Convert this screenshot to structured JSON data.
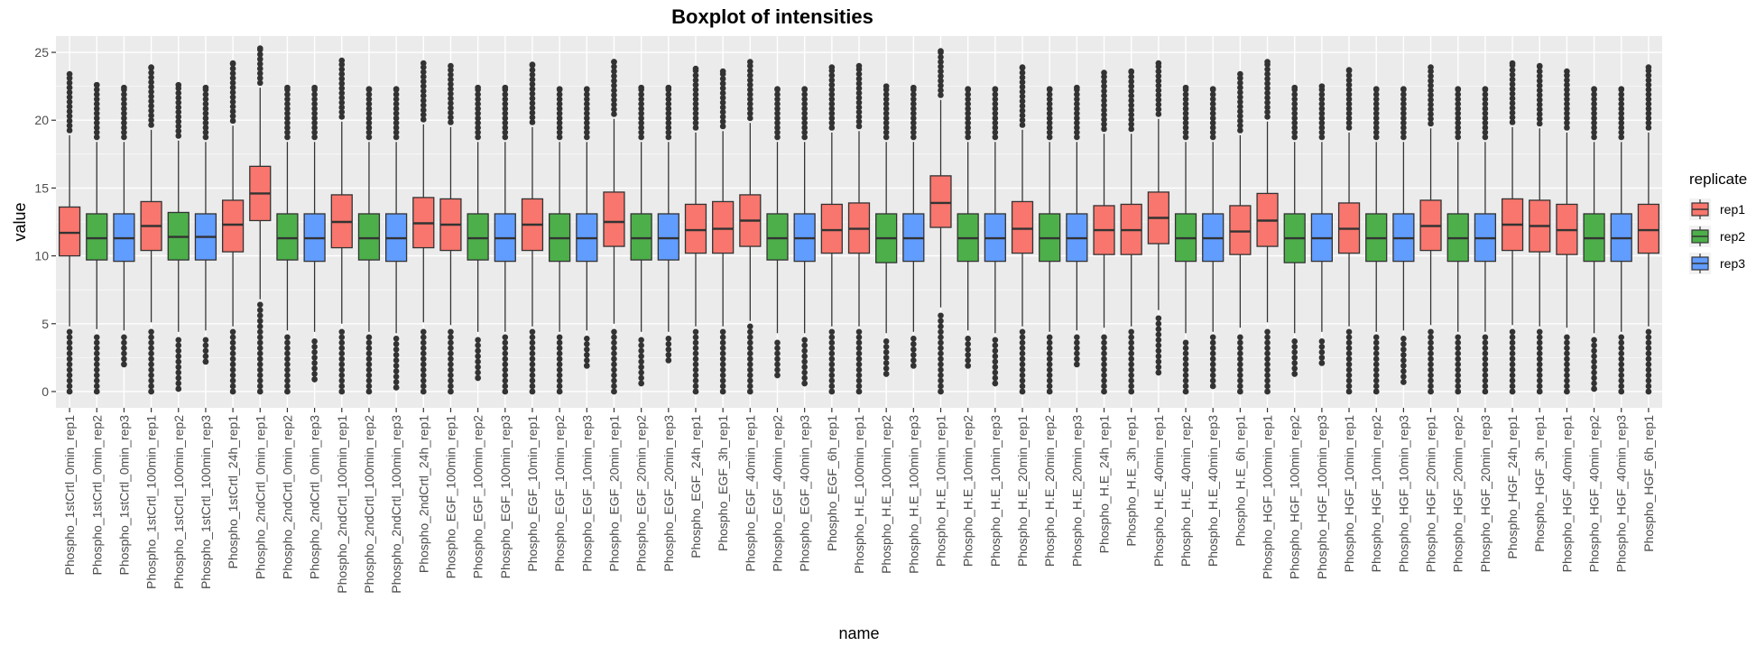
{
  "chart_data": {
    "type": "boxplot",
    "title": "Boxplot of intensities",
    "xlabel": "name",
    "ylabel": "value",
    "ylim": [
      -1.2,
      26.2
    ],
    "yticks": [
      0,
      5,
      10,
      15,
      20,
      25
    ],
    "grid": true,
    "legend": {
      "title": "replicate",
      "position": "right",
      "entries": [
        {
          "name": "rep1",
          "color": "#F8766D"
        },
        {
          "name": "rep2",
          "color": "#4DAF4A"
        },
        {
          "name": "rep3",
          "color": "#619CFF"
        }
      ]
    },
    "colors": {
      "rep1": "#F8766D",
      "rep2": "#4DAF4A",
      "rep3": "#619CFF",
      "panel": "#EBEBEB",
      "grid": "#FFFFFF",
      "outlier": "#333333"
    },
    "categories": [
      "Phospho_1stCrtl_0min_rep1",
      "Phospho_1stCrtl_0min_rep2",
      "Phospho_1stCrtl_0min_rep3",
      "Phospho_1stCrtl_100min_rep1",
      "Phospho_1stCrtl_100min_rep2",
      "Phospho_1stCrtl_100min_rep3",
      "Phospho_1stCrtl_24h_rep1",
      "Phospho_2ndCrtl_0min_rep1",
      "Phospho_2ndCrtl_0min_rep2",
      "Phospho_2ndCrtl_0min_rep3",
      "Phospho_2ndCrtl_100min_rep1",
      "Phospho_2ndCrtl_100min_rep2",
      "Phospho_2ndCrtl_100min_rep3",
      "Phospho_2ndCrtl_24h_rep1",
      "Phospho_EGF_100min_rep1",
      "Phospho_EGF_100min_rep2",
      "Phospho_EGF_100min_rep3",
      "Phospho_EGF_10min_rep1",
      "Phospho_EGF_10min_rep2",
      "Phospho_EGF_10min_rep3",
      "Phospho_EGF_20min_rep1",
      "Phospho_EGF_20min_rep2",
      "Phospho_EGF_20min_rep3",
      "Phospho_EGF_24h_rep1",
      "Phospho_EGF_3h_rep1",
      "Phospho_EGF_40min_rep1",
      "Phospho_EGF_40min_rep2",
      "Phospho_EGF_40min_rep3",
      "Phospho_EGF_6h_rep1",
      "Phospho_H.E_100min_rep1",
      "Phospho_H.E_100min_rep2",
      "Phospho_H.E_100min_rep3",
      "Phospho_H.E_10min_rep1",
      "Phospho_H.E_10min_rep2",
      "Phospho_H.E_10min_rep3",
      "Phospho_H.E_20min_rep1",
      "Phospho_H.E_20min_rep2",
      "Phospho_H.E_20min_rep3",
      "Phospho_H.E_24h_rep1",
      "Phospho_H.E_3h_rep1",
      "Phospho_H.E_40min_rep1",
      "Phospho_H.E_40min_rep2",
      "Phospho_H.E_40min_rep3",
      "Phospho_H.E_6h_rep1",
      "Phospho_HGF_100min_rep1",
      "Phospho_HGF_100min_rep2",
      "Phospho_HGF_100min_rep3",
      "Phospho_HGF_10min_rep1",
      "Phospho_HGF_10min_rep2",
      "Phospho_HGF_10min_rep3",
      "Phospho_HGF_20min_rep1",
      "Phospho_HGF_20min_rep2",
      "Phospho_HGF_20min_rep3",
      "Phospho_HGF_24h_rep1",
      "Phospho_HGF_3h_rep1",
      "Phospho_HGF_40min_rep1",
      "Phospho_HGF_40min_rep2",
      "Phospho_HGF_40min_rep3",
      "Phospho_HGF_6h_rep1"
    ],
    "boxes": [
      {
        "rep": "rep1",
        "q1": 10.0,
        "median": 11.7,
        "q3": 13.6,
        "lo_whisker": 4.8,
        "hi_whisker": 18.9,
        "out_min": 0.0,
        "out_max": 23.4
      },
      {
        "rep": "rep2",
        "q1": 9.7,
        "median": 11.3,
        "q3": 13.1,
        "lo_whisker": 4.6,
        "hi_whisker": 18.4,
        "out_min": 0.0,
        "out_max": 22.6
      },
      {
        "rep": "rep3",
        "q1": 9.6,
        "median": 11.3,
        "q3": 13.1,
        "lo_whisker": 4.5,
        "hi_whisker": 18.4,
        "out_min": 2.0,
        "out_max": 22.4
      },
      {
        "rep": "rep1",
        "q1": 10.4,
        "median": 12.2,
        "q3": 14.0,
        "lo_whisker": 5.1,
        "hi_whisker": 19.3,
        "out_min": 0.0,
        "out_max": 23.9
      },
      {
        "rep": "rep2",
        "q1": 9.7,
        "median": 11.4,
        "q3": 13.2,
        "lo_whisker": 4.4,
        "hi_whisker": 18.5,
        "out_min": 0.2,
        "out_max": 22.6
      },
      {
        "rep": "rep3",
        "q1": 9.7,
        "median": 11.4,
        "q3": 13.1,
        "lo_whisker": 4.5,
        "hi_whisker": 18.4,
        "out_min": 2.2,
        "out_max": 22.4
      },
      {
        "rep": "rep1",
        "q1": 10.3,
        "median": 12.3,
        "q3": 14.1,
        "lo_whisker": 4.8,
        "hi_whisker": 19.6,
        "out_min": 0.0,
        "out_max": 24.2
      },
      {
        "rep": "rep1",
        "q1": 12.6,
        "median": 14.6,
        "q3": 16.6,
        "lo_whisker": 6.8,
        "hi_whisker": 22.4,
        "out_min": 0.0,
        "out_max": 25.3
      },
      {
        "rep": "rep2",
        "q1": 9.7,
        "median": 11.3,
        "q3": 13.1,
        "lo_whisker": 4.5,
        "hi_whisker": 18.4,
        "out_min": 0.0,
        "out_max": 22.4
      },
      {
        "rep": "rep3",
        "q1": 9.6,
        "median": 11.3,
        "q3": 13.1,
        "lo_whisker": 4.4,
        "hi_whisker": 18.4,
        "out_min": 0.9,
        "out_max": 22.4
      },
      {
        "rep": "rep1",
        "q1": 10.6,
        "median": 12.5,
        "q3": 14.5,
        "lo_whisker": 5.0,
        "hi_whisker": 19.9,
        "out_min": 0.0,
        "out_max": 24.4
      },
      {
        "rep": "rep2",
        "q1": 9.7,
        "median": 11.3,
        "q3": 13.1,
        "lo_whisker": 4.4,
        "hi_whisker": 18.4,
        "out_min": 0.0,
        "out_max": 22.3
      },
      {
        "rep": "rep3",
        "q1": 9.6,
        "median": 11.3,
        "q3": 13.1,
        "lo_whisker": 4.3,
        "hi_whisker": 18.4,
        "out_min": 0.3,
        "out_max": 22.3
      },
      {
        "rep": "rep1",
        "q1": 10.6,
        "median": 12.4,
        "q3": 14.3,
        "lo_whisker": 5.1,
        "hi_whisker": 19.7,
        "out_min": 0.0,
        "out_max": 24.2
      },
      {
        "rep": "rep1",
        "q1": 10.4,
        "median": 12.3,
        "q3": 14.2,
        "lo_whisker": 4.9,
        "hi_whisker": 19.5,
        "out_min": 0.0,
        "out_max": 24.0
      },
      {
        "rep": "rep2",
        "q1": 9.7,
        "median": 11.3,
        "q3": 13.1,
        "lo_whisker": 4.4,
        "hi_whisker": 18.4,
        "out_min": 1.0,
        "out_max": 22.4
      },
      {
        "rep": "rep3",
        "q1": 9.6,
        "median": 11.3,
        "q3": 13.1,
        "lo_whisker": 4.4,
        "hi_whisker": 18.4,
        "out_min": 0.0,
        "out_max": 22.4
      },
      {
        "rep": "rep1",
        "q1": 10.4,
        "median": 12.3,
        "q3": 14.2,
        "lo_whisker": 4.8,
        "hi_whisker": 19.5,
        "out_min": 0.0,
        "out_max": 24.1
      },
      {
        "rep": "rep2",
        "q1": 9.6,
        "median": 11.3,
        "q3": 13.1,
        "lo_whisker": 4.4,
        "hi_whisker": 18.4,
        "out_min": 0.0,
        "out_max": 22.3
      },
      {
        "rep": "rep3",
        "q1": 9.6,
        "median": 11.3,
        "q3": 13.1,
        "lo_whisker": 4.5,
        "hi_whisker": 18.4,
        "out_min": 1.9,
        "out_max": 22.3
      },
      {
        "rep": "rep1",
        "q1": 10.7,
        "median": 12.5,
        "q3": 14.7,
        "lo_whisker": 5.0,
        "hi_whisker": 20.1,
        "out_min": 0.0,
        "out_max": 24.3
      },
      {
        "rep": "rep2",
        "q1": 9.7,
        "median": 11.3,
        "q3": 13.1,
        "lo_whisker": 4.4,
        "hi_whisker": 18.4,
        "out_min": 0.6,
        "out_max": 22.4
      },
      {
        "rep": "rep3",
        "q1": 9.7,
        "median": 11.3,
        "q3": 13.1,
        "lo_whisker": 4.4,
        "hi_whisker": 18.4,
        "out_min": 2.3,
        "out_max": 22.4
      },
      {
        "rep": "rep1",
        "q1": 10.2,
        "median": 11.9,
        "q3": 13.8,
        "lo_whisker": 4.8,
        "hi_whisker": 19.1,
        "out_min": 0.0,
        "out_max": 23.8
      },
      {
        "rep": "rep1",
        "q1": 10.2,
        "median": 12.0,
        "q3": 14.0,
        "lo_whisker": 4.8,
        "hi_whisker": 19.2,
        "out_min": 0.0,
        "out_max": 23.6
      },
      {
        "rep": "rep1",
        "q1": 10.7,
        "median": 12.6,
        "q3": 14.5,
        "lo_whisker": 5.2,
        "hi_whisker": 19.8,
        "out_min": 0.0,
        "out_max": 24.3
      },
      {
        "rep": "rep2",
        "q1": 9.7,
        "median": 11.3,
        "q3": 13.1,
        "lo_whisker": 4.3,
        "hi_whisker": 18.4,
        "out_min": 1.2,
        "out_max": 22.3
      },
      {
        "rep": "rep3",
        "q1": 9.6,
        "median": 11.3,
        "q3": 13.1,
        "lo_whisker": 4.3,
        "hi_whisker": 18.4,
        "out_min": 0.6,
        "out_max": 22.3
      },
      {
        "rep": "rep1",
        "q1": 10.2,
        "median": 11.9,
        "q3": 13.8,
        "lo_whisker": 4.8,
        "hi_whisker": 19.1,
        "out_min": 0.0,
        "out_max": 23.9
      },
      {
        "rep": "rep1",
        "q1": 10.2,
        "median": 12.0,
        "q3": 13.9,
        "lo_whisker": 4.8,
        "hi_whisker": 19.2,
        "out_min": 0.0,
        "out_max": 24.0
      },
      {
        "rep": "rep2",
        "q1": 9.5,
        "median": 11.3,
        "q3": 13.1,
        "lo_whisker": 4.3,
        "hi_whisker": 18.4,
        "out_min": 1.3,
        "out_max": 22.5
      },
      {
        "rep": "rep3",
        "q1": 9.6,
        "median": 11.3,
        "q3": 13.1,
        "lo_whisker": 4.4,
        "hi_whisker": 18.4,
        "out_min": 1.9,
        "out_max": 22.4
      },
      {
        "rep": "rep1",
        "q1": 12.1,
        "median": 13.9,
        "q3": 15.9,
        "lo_whisker": 6.2,
        "hi_whisker": 21.5,
        "out_min": 0.0,
        "out_max": 25.1
      },
      {
        "rep": "rep2",
        "q1": 9.6,
        "median": 11.3,
        "q3": 13.1,
        "lo_whisker": 4.5,
        "hi_whisker": 18.4,
        "out_min": 1.9,
        "out_max": 22.3
      },
      {
        "rep": "rep3",
        "q1": 9.6,
        "median": 11.3,
        "q3": 13.1,
        "lo_whisker": 4.3,
        "hi_whisker": 18.4,
        "out_min": 0.6,
        "out_max": 22.3
      },
      {
        "rep": "rep1",
        "q1": 10.2,
        "median": 12.0,
        "q3": 14.0,
        "lo_whisker": 4.8,
        "hi_whisker": 19.3,
        "out_min": 0.0,
        "out_max": 23.9
      },
      {
        "rep": "rep2",
        "q1": 9.6,
        "median": 11.3,
        "q3": 13.1,
        "lo_whisker": 4.4,
        "hi_whisker": 18.4,
        "out_min": 0.0,
        "out_max": 22.3
      },
      {
        "rep": "rep3",
        "q1": 9.6,
        "median": 11.3,
        "q3": 13.1,
        "lo_whisker": 4.5,
        "hi_whisker": 18.4,
        "out_min": 2.0,
        "out_max": 22.4
      },
      {
        "rep": "rep1",
        "q1": 10.1,
        "median": 11.9,
        "q3": 13.7,
        "lo_whisker": 4.7,
        "hi_whisker": 19.0,
        "out_min": 0.0,
        "out_max": 23.5
      },
      {
        "rep": "rep1",
        "q1": 10.1,
        "median": 11.9,
        "q3": 13.8,
        "lo_whisker": 4.8,
        "hi_whisker": 19.0,
        "out_min": 0.0,
        "out_max": 23.6
      },
      {
        "rep": "rep1",
        "q1": 10.9,
        "median": 12.8,
        "q3": 14.7,
        "lo_whisker": 6.0,
        "hi_whisker": 20.1,
        "out_min": 1.4,
        "out_max": 24.2
      },
      {
        "rep": "rep2",
        "q1": 9.6,
        "median": 11.3,
        "q3": 13.1,
        "lo_whisker": 4.3,
        "hi_whisker": 18.4,
        "out_min": 0.0,
        "out_max": 22.4
      },
      {
        "rep": "rep3",
        "q1": 9.6,
        "median": 11.3,
        "q3": 13.1,
        "lo_whisker": 4.4,
        "hi_whisker": 18.4,
        "out_min": 0.4,
        "out_max": 22.3
      },
      {
        "rep": "rep1",
        "q1": 10.1,
        "median": 11.8,
        "q3": 13.7,
        "lo_whisker": 4.7,
        "hi_whisker": 18.9,
        "out_min": 0.0,
        "out_max": 23.4
      },
      {
        "rep": "rep1",
        "q1": 10.7,
        "median": 12.6,
        "q3": 14.6,
        "lo_whisker": 5.1,
        "hi_whisker": 19.9,
        "out_min": 0.0,
        "out_max": 24.3
      },
      {
        "rep": "rep2",
        "q1": 9.5,
        "median": 11.3,
        "q3": 13.1,
        "lo_whisker": 4.3,
        "hi_whisker": 18.4,
        "out_min": 1.3,
        "out_max": 22.4
      },
      {
        "rep": "rep3",
        "q1": 9.6,
        "median": 11.3,
        "q3": 13.1,
        "lo_whisker": 4.4,
        "hi_whisker": 18.4,
        "out_min": 2.1,
        "out_max": 22.5
      },
      {
        "rep": "rep1",
        "q1": 10.2,
        "median": 12.0,
        "q3": 13.9,
        "lo_whisker": 4.8,
        "hi_whisker": 19.1,
        "out_min": 0.0,
        "out_max": 23.7
      },
      {
        "rep": "rep2",
        "q1": 9.6,
        "median": 11.3,
        "q3": 13.1,
        "lo_whisker": 4.4,
        "hi_whisker": 18.4,
        "out_min": 0.0,
        "out_max": 22.3
      },
      {
        "rep": "rep3",
        "q1": 9.6,
        "median": 11.3,
        "q3": 13.1,
        "lo_whisker": 4.5,
        "hi_whisker": 18.4,
        "out_min": 0.7,
        "out_max": 22.3
      },
      {
        "rep": "rep1",
        "q1": 10.4,
        "median": 12.2,
        "q3": 14.1,
        "lo_whisker": 4.9,
        "hi_whisker": 19.4,
        "out_min": 0.0,
        "out_max": 23.9
      },
      {
        "rep": "rep2",
        "q1": 9.6,
        "median": 11.3,
        "q3": 13.1,
        "lo_whisker": 4.4,
        "hi_whisker": 18.4,
        "out_min": 0.0,
        "out_max": 22.3
      },
      {
        "rep": "rep3",
        "q1": 9.6,
        "median": 11.3,
        "q3": 13.1,
        "lo_whisker": 4.4,
        "hi_whisker": 18.4,
        "out_min": 0.0,
        "out_max": 22.3
      },
      {
        "rep": "rep1",
        "q1": 10.4,
        "median": 12.3,
        "q3": 14.2,
        "lo_whisker": 4.9,
        "hi_whisker": 19.5,
        "out_min": 0.0,
        "out_max": 24.2
      },
      {
        "rep": "rep1",
        "q1": 10.3,
        "median": 12.2,
        "q3": 14.1,
        "lo_whisker": 4.8,
        "hi_whisker": 19.4,
        "out_min": 0.0,
        "out_max": 24.0
      },
      {
        "rep": "rep1",
        "q1": 10.1,
        "median": 11.9,
        "q3": 13.8,
        "lo_whisker": 4.7,
        "hi_whisker": 19.1,
        "out_min": 0.0,
        "out_max": 23.6
      },
      {
        "rep": "rep2",
        "q1": 9.6,
        "median": 11.3,
        "q3": 13.1,
        "lo_whisker": 4.3,
        "hi_whisker": 18.4,
        "out_min": 0.2,
        "out_max": 22.3
      },
      {
        "rep": "rep3",
        "q1": 9.6,
        "median": 11.3,
        "q3": 13.1,
        "lo_whisker": 4.4,
        "hi_whisker": 18.4,
        "out_min": 0.0,
        "out_max": 22.3
      },
      {
        "rep": "rep1",
        "q1": 10.2,
        "median": 11.9,
        "q3": 13.8,
        "lo_whisker": 4.8,
        "hi_whisker": 19.1,
        "out_min": 0.0,
        "out_max": 23.9
      }
    ]
  }
}
